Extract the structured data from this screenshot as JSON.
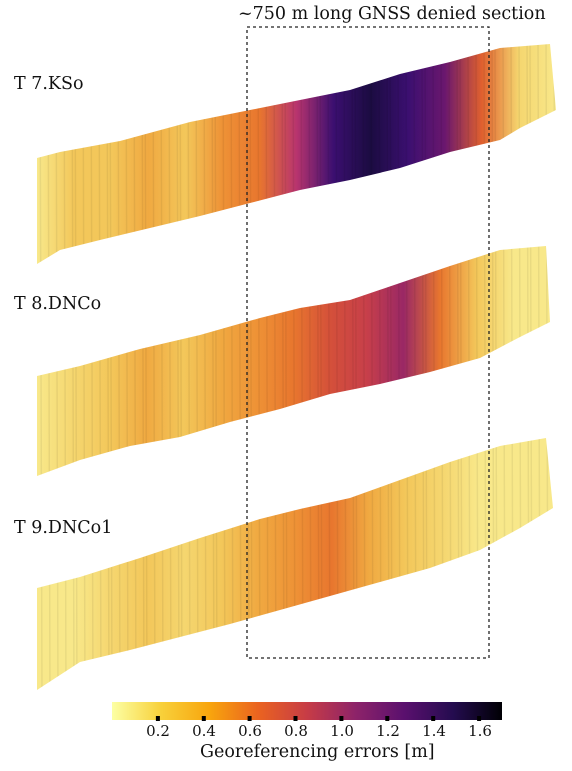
{
  "title": "~750 m long  GNSS denied section",
  "strips": [
    {
      "label": "T 7.KSo",
      "colors": [
        "#f8e88a",
        "#f3c75a",
        "#f3c75a",
        "#f0a941",
        "#f3c75a",
        "#ee9236",
        "#e8762e",
        "#b8346e",
        "#3b0f70",
        "#1b0c41",
        "#3b0f70",
        "#6a176e",
        "#e0602e",
        "#f5d66f",
        "#f8e88a"
      ]
    },
    {
      "label": "T 8.DNCo",
      "colors": [
        "#f8e88a",
        "#f5d66f",
        "#f3c75a",
        "#f0a941",
        "#f3c75a",
        "#f0a941",
        "#ee9236",
        "#e8762e",
        "#d4503a",
        "#c73f4a",
        "#9a2865",
        "#e8762e",
        "#f3c75a",
        "#f8e88a",
        "#f8e88a"
      ]
    },
    {
      "label": "T 9.DNCo1",
      "colors": [
        "#f8e88a",
        "#f8e88a",
        "#f5d66f",
        "#f3c75a",
        "#f5d66f",
        "#f3c75a",
        "#f0a941",
        "#ee9236",
        "#e8762e",
        "#f0a941",
        "#f3c75a",
        "#f5d66f",
        "#f8e88a",
        "#f8e88a",
        "#f8e88a"
      ]
    }
  ],
  "colorbar": {
    "label": "Georeferencing errors [m]",
    "min": 0.0,
    "max": 1.7,
    "ticks": [
      0.2,
      0.4,
      0.6,
      0.8,
      1.0,
      1.2,
      1.4,
      1.6
    ],
    "tick_labels": [
      "0.2",
      "0.4",
      "0.6",
      "0.8",
      "1.0",
      "1.2",
      "1.4",
      "1.6"
    ],
    "colors": [
      "#fcffa4",
      "#f8d13b",
      "#f8a50d",
      "#ea6320",
      "#c73c46",
      "#8d2369",
      "#5a106e",
      "#240c4f",
      "#000004"
    ]
  }
}
